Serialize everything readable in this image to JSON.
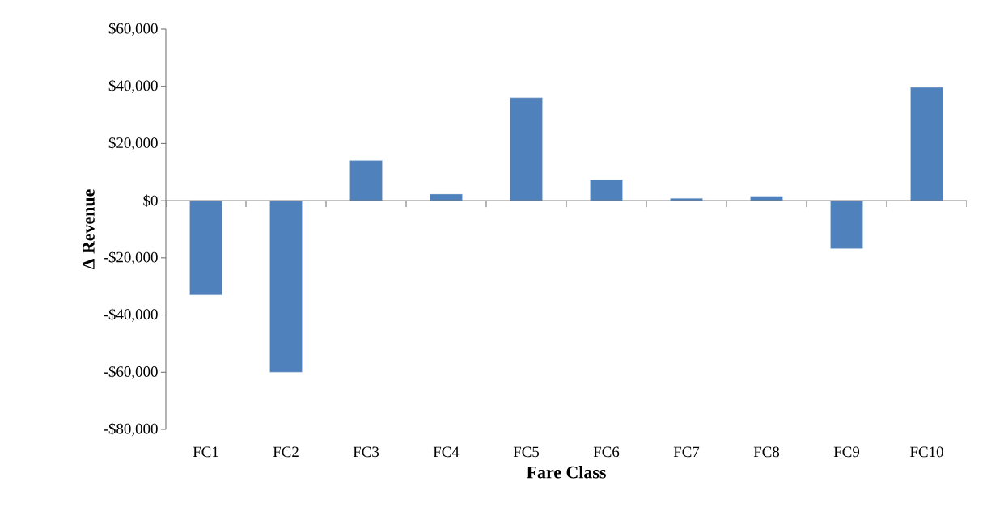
{
  "chart_data": {
    "type": "bar",
    "categories": [
      "FC1",
      "FC2",
      "FC3",
      "FC4",
      "FC5",
      "FC6",
      "FC7",
      "FC8",
      "FC9",
      "FC10"
    ],
    "values": [
      -33000,
      -60000,
      14000,
      2300,
      36000,
      7300,
      800,
      1500,
      -16800,
      39600
    ],
    "color": "#4f81bd",
    "xlabel": "Fare Class",
    "ylabel": "Δ Revenue",
    "ylim": [
      -80000,
      60000
    ],
    "yticks": [
      {
        "value": -80000,
        "label": "-$80,000"
      },
      {
        "value": -60000,
        "label": "-$60,000"
      },
      {
        "value": -40000,
        "label": "-$40,000"
      },
      {
        "value": -20000,
        "label": "-$20,000"
      },
      {
        "value": 0,
        "label": "$0"
      },
      {
        "value": 20000,
        "label": "$20,000"
      },
      {
        "value": 40000,
        "label": "$40,000"
      },
      {
        "value": 60000,
        "label": "$60,000"
      }
    ]
  }
}
